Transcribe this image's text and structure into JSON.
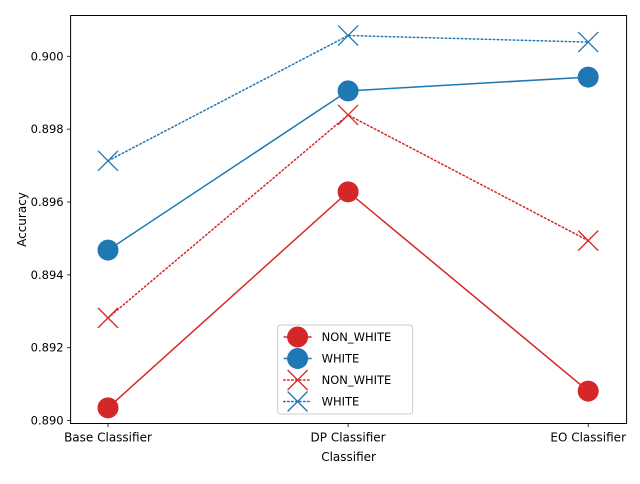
{
  "chart_data": {
    "type": "line",
    "title": "",
    "xlabel": "Classifier",
    "ylabel": "Accuracy",
    "categories": [
      "Base Classifier",
      "DP Classifier",
      "EO Classifier"
    ],
    "ylim": [
      0.88992,
      0.90112
    ],
    "y_ticks": [
      0.89,
      0.892,
      0.894,
      0.896,
      0.898,
      0.9
    ],
    "y_tick_labels": [
      "0.890",
      "0.892",
      "0.894",
      "0.896",
      "0.898",
      "0.900"
    ],
    "grid": false,
    "legend_position": "lower-center",
    "series": [
      {
        "name": "NON_WHITE",
        "color": "#d62728",
        "line_style": "solid",
        "marker": "circle",
        "values": [
          0.89035,
          0.89628,
          0.89081
        ]
      },
      {
        "name": "WHITE",
        "color": "#1f77b4",
        "line_style": "solid",
        "marker": "circle",
        "values": [
          0.89468,
          0.89905,
          0.89943
        ]
      },
      {
        "name": "NON_WHITE",
        "color": "#d62728",
        "line_style": "dotted",
        "marker": "x",
        "values": [
          0.89282,
          0.89839,
          0.89494
        ]
      },
      {
        "name": "WHITE",
        "color": "#1f77b4",
        "line_style": "dotted",
        "marker": "x",
        "values": [
          0.89713,
          0.90057,
          0.90039
        ]
      }
    ]
  }
}
